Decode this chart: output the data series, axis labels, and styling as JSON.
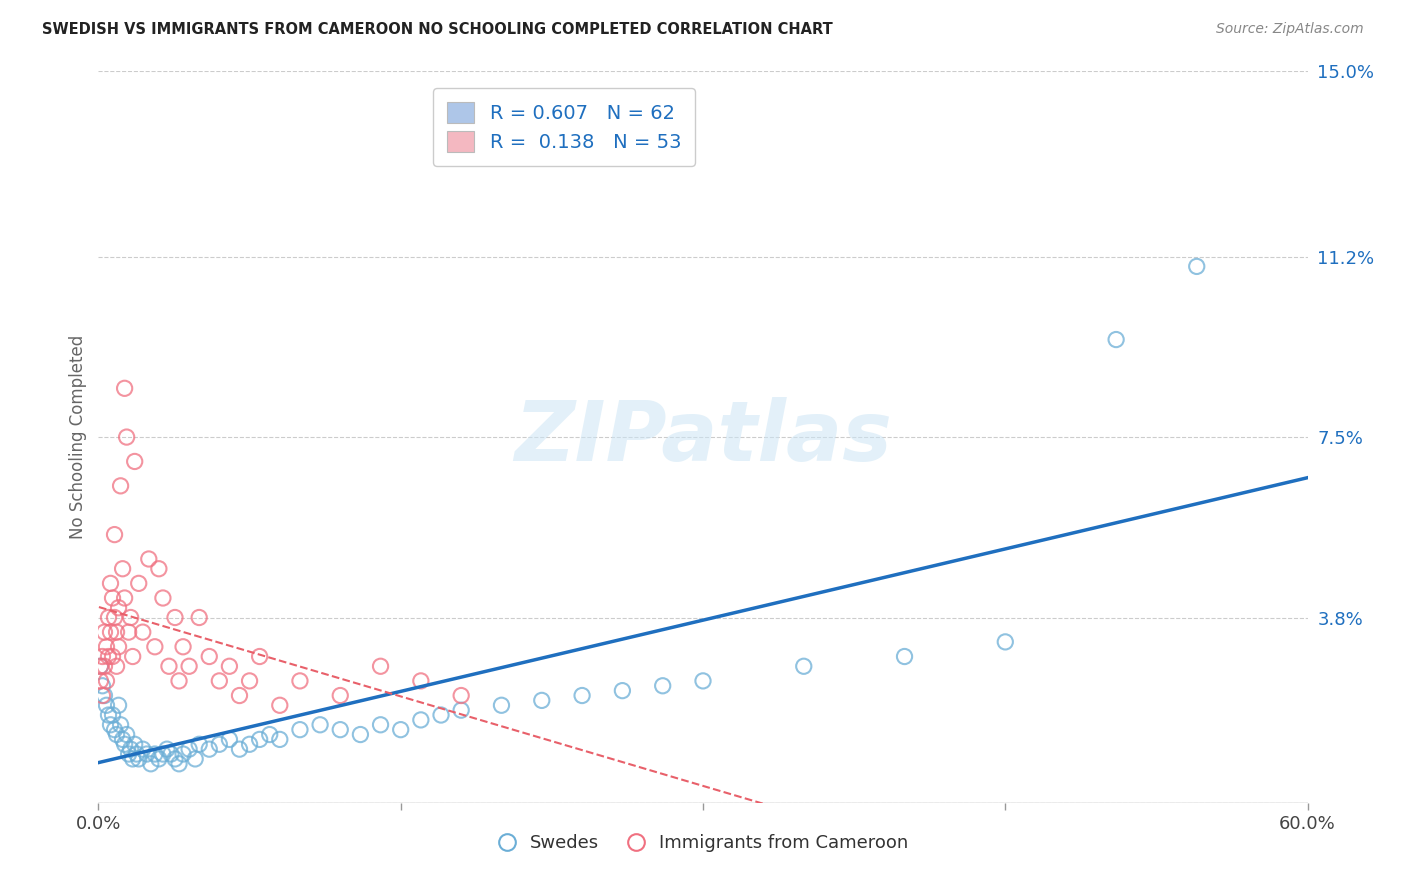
{
  "title": "SWEDISH VS IMMIGRANTS FROM CAMEROON NO SCHOOLING COMPLETED CORRELATION CHART",
  "source": "Source: ZipAtlas.com",
  "ylabel": "No Schooling Completed",
  "xlim": [
    0.0,
    0.6
  ],
  "ylim": [
    0.0,
    0.15
  ],
  "xticks": [
    0.0,
    0.15,
    0.3,
    0.45,
    0.6
  ],
  "xticklabels": [
    "0.0%",
    "",
    "",
    "",
    "60.0%"
  ],
  "yticks": [
    0.0,
    0.038,
    0.075,
    0.112,
    0.15
  ],
  "yticklabels": [
    "",
    "3.8%",
    "7.5%",
    "11.2%",
    "15.0%"
  ],
  "watermark": "ZIPatlas",
  "legend_box_color_blue": "#aec6e8",
  "legend_box_color_pink": "#f4b8c1",
  "legend_r_blue": "R = 0.607",
  "legend_n_blue": "N = 62",
  "legend_r_pink": "R =  0.138",
  "legend_n_pink": "N = 53",
  "blue_color": "#6baed6",
  "pink_color": "#f07080",
  "blue_line_color": "#1f6fbf",
  "pink_line_color": "#e8606a",
  "swedes_x": [
    0.001,
    0.002,
    0.003,
    0.004,
    0.005,
    0.006,
    0.007,
    0.008,
    0.009,
    0.01,
    0.011,
    0.012,
    0.013,
    0.014,
    0.015,
    0.016,
    0.017,
    0.018,
    0.019,
    0.02,
    0.022,
    0.024,
    0.026,
    0.028,
    0.03,
    0.032,
    0.034,
    0.036,
    0.038,
    0.04,
    0.042,
    0.045,
    0.048,
    0.05,
    0.055,
    0.06,
    0.065,
    0.07,
    0.075,
    0.08,
    0.085,
    0.09,
    0.1,
    0.11,
    0.12,
    0.13,
    0.14,
    0.15,
    0.16,
    0.17,
    0.18,
    0.2,
    0.22,
    0.24,
    0.26,
    0.28,
    0.3,
    0.35,
    0.4,
    0.45,
    0.505,
    0.545
  ],
  "swedes_y": [
    0.028,
    0.024,
    0.022,
    0.02,
    0.018,
    0.016,
    0.018,
    0.015,
    0.014,
    0.02,
    0.016,
    0.013,
    0.012,
    0.014,
    0.01,
    0.011,
    0.009,
    0.012,
    0.01,
    0.009,
    0.011,
    0.01,
    0.008,
    0.01,
    0.009,
    0.01,
    0.011,
    0.01,
    0.009,
    0.008,
    0.01,
    0.011,
    0.009,
    0.012,
    0.011,
    0.012,
    0.013,
    0.011,
    0.012,
    0.013,
    0.014,
    0.013,
    0.015,
    0.016,
    0.015,
    0.014,
    0.016,
    0.015,
    0.017,
    0.018,
    0.019,
    0.02,
    0.021,
    0.022,
    0.023,
    0.024,
    0.025,
    0.028,
    0.03,
    0.033,
    0.095,
    0.11
  ],
  "cameroon_x": [
    0.001,
    0.001,
    0.002,
    0.002,
    0.003,
    0.003,
    0.004,
    0.004,
    0.005,
    0.005,
    0.006,
    0.006,
    0.007,
    0.007,
    0.008,
    0.008,
    0.009,
    0.009,
    0.01,
    0.01,
    0.011,
    0.012,
    0.013,
    0.013,
    0.014,
    0.015,
    0.016,
    0.017,
    0.018,
    0.02,
    0.022,
    0.025,
    0.028,
    0.03,
    0.032,
    0.035,
    0.038,
    0.04,
    0.042,
    0.045,
    0.05,
    0.055,
    0.06,
    0.065,
    0.07,
    0.075,
    0.08,
    0.09,
    0.1,
    0.12,
    0.14,
    0.16,
    0.18
  ],
  "cameroon_y": [
    0.028,
    0.025,
    0.03,
    0.022,
    0.035,
    0.028,
    0.032,
    0.025,
    0.038,
    0.03,
    0.045,
    0.035,
    0.042,
    0.03,
    0.055,
    0.038,
    0.035,
    0.028,
    0.04,
    0.032,
    0.065,
    0.048,
    0.085,
    0.042,
    0.075,
    0.035,
    0.038,
    0.03,
    0.07,
    0.045,
    0.035,
    0.05,
    0.032,
    0.048,
    0.042,
    0.028,
    0.038,
    0.025,
    0.032,
    0.028,
    0.038,
    0.03,
    0.025,
    0.028,
    0.022,
    0.025,
    0.03,
    0.02,
    0.025,
    0.022,
    0.028,
    0.025,
    0.022
  ]
}
